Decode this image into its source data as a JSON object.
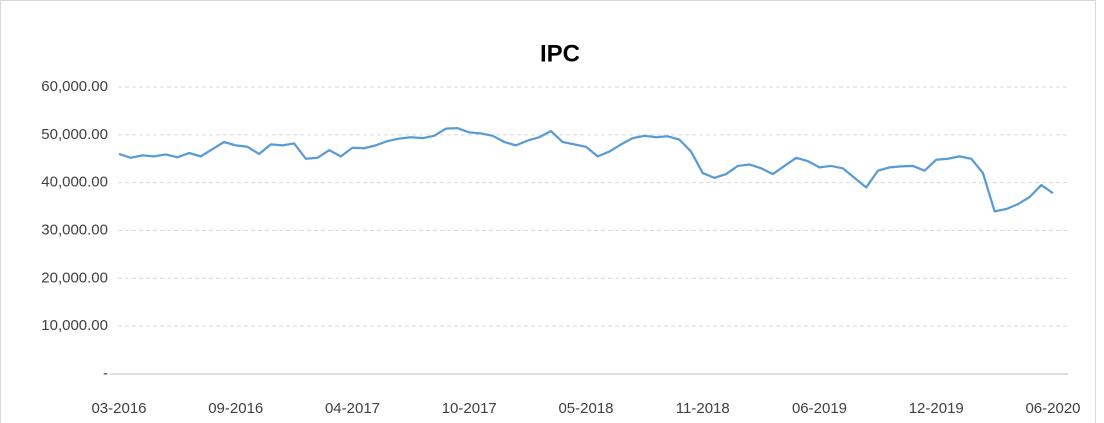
{
  "chart_data": {
    "type": "line",
    "title": "IPC",
    "categories": [
      "03-2016",
      null,
      null,
      null,
      null,
      null,
      null,
      null,
      null,
      null,
      "09-2016",
      null,
      null,
      null,
      null,
      null,
      null,
      null,
      null,
      null,
      "04-2017",
      null,
      null,
      null,
      null,
      null,
      null,
      null,
      null,
      null,
      "10-2017",
      null,
      null,
      null,
      null,
      null,
      null,
      null,
      null,
      null,
      "05-2018",
      null,
      null,
      null,
      null,
      null,
      null,
      null,
      null,
      null,
      "11-2018",
      null,
      null,
      null,
      null,
      null,
      null,
      null,
      null,
      null,
      "06-2019",
      null,
      null,
      null,
      null,
      null,
      null,
      null,
      null,
      null,
      "12-2019",
      null,
      null,
      null,
      null,
      null,
      null,
      null,
      null,
      null,
      "06-2020"
    ],
    "series": [
      {
        "name": "IPC",
        "color": "#5b9bd5",
        "values": [
          46000,
          45200,
          45700,
          45500,
          45900,
          45300,
          46200,
          45500,
          47000,
          48500,
          47800,
          47500,
          46000,
          48000,
          47800,
          48200,
          45000,
          45200,
          46800,
          45500,
          47300,
          47200,
          47800,
          48700,
          49200,
          49500,
          49300,
          49800,
          51300,
          51400,
          50500,
          50300,
          49800,
          48500,
          47800,
          48800,
          49500,
          50800,
          48500,
          48000,
          47500,
          45500,
          46500,
          48000,
          49300,
          49800,
          49500,
          49700,
          49000,
          46500,
          42000,
          41000,
          41800,
          43500,
          43800,
          43000,
          41800,
          43500,
          45200,
          44500,
          43200,
          43500,
          43000,
          41000,
          39000,
          42500,
          43200,
          43400,
          43500,
          42500,
          44800,
          45000,
          45500,
          45000,
          42000,
          34000,
          34500,
          35500,
          37000,
          39500,
          37800
        ]
      }
    ],
    "ylim": [
      0,
      60000
    ],
    "yticks": [
      {
        "value": 0,
        "label": "-"
      },
      {
        "value": 10000,
        "label": "10,000.00"
      },
      {
        "value": 20000,
        "label": "20,000.00"
      },
      {
        "value": 30000,
        "label": "30,000.00"
      },
      {
        "value": 40000,
        "label": "40,000.00"
      },
      {
        "value": 50000,
        "label": "50,000.00"
      },
      {
        "value": 60000,
        "label": "60,000.00"
      }
    ],
    "grid": true
  }
}
